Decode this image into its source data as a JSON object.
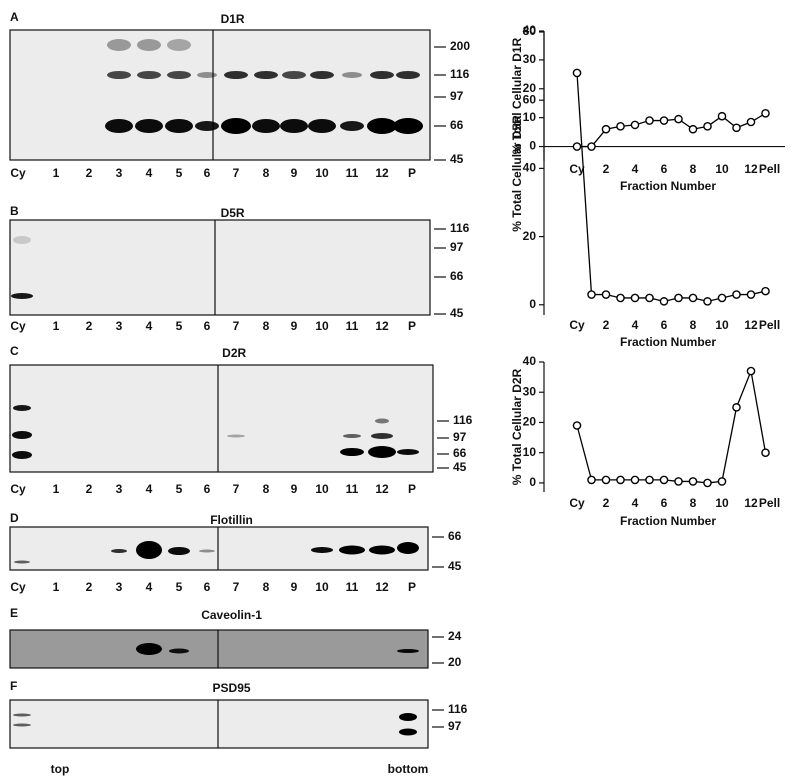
{
  "panels": [
    {
      "letter": "A",
      "title": "D1R",
      "lanes": [
        "Cy",
        "1",
        "2",
        "3",
        "4",
        "5",
        "6",
        "7",
        "8",
        "9",
        "10",
        "11",
        "12",
        "P"
      ],
      "markers": [
        "200",
        "116",
        "97",
        "66",
        "45"
      ]
    },
    {
      "letter": "B",
      "title": "D5R",
      "lanes": [
        "Cy",
        "1",
        "2",
        "3",
        "4",
        "5",
        "6",
        "7",
        "8",
        "9",
        "10",
        "11",
        "12",
        "P"
      ],
      "markers": [
        "116",
        "97",
        "66",
        "45"
      ]
    },
    {
      "letter": "C",
      "title": "D2R",
      "lanes": [
        "Cy",
        "1",
        "2",
        "3",
        "4",
        "5",
        "6",
        "7",
        "8",
        "9",
        "10",
        "11",
        "12",
        "P"
      ],
      "markers": [
        "116",
        "97",
        "66",
        "45"
      ]
    },
    {
      "letter": "D",
      "title": "Flotillin",
      "lanes": [
        "Cy",
        "1",
        "2",
        "3",
        "4",
        "5",
        "6",
        "7",
        "8",
        "9",
        "10",
        "11",
        "12",
        "P"
      ],
      "markers": [
        "66",
        "45"
      ]
    },
    {
      "letter": "E",
      "title": "Caveolin-1",
      "markers": [
        "24",
        "20"
      ]
    },
    {
      "letter": "F",
      "title": "PSD95",
      "markers": [
        "116",
        "97"
      ],
      "ends": [
        "top",
        "bottom"
      ]
    }
  ],
  "chart_data": [
    {
      "type": "line",
      "y_label": "% Total Cellular D1R",
      "x_label": "Fraction Number",
      "categories": [
        "Cy",
        null,
        "2",
        null,
        "4",
        null,
        "6",
        null,
        "8",
        null,
        "10",
        null,
        "12",
        "Pell"
      ],
      "values": [
        0,
        0,
        6,
        7,
        7.5,
        9,
        9,
        9.5,
        6,
        7,
        10.5,
        6.5,
        8.5,
        11.5
      ],
      "ylim": [
        -5,
        40
      ],
      "yticks": [
        0,
        10,
        20,
        30,
        40
      ],
      "zero_line": true,
      "color": "#000000"
    },
    {
      "type": "line",
      "y_label": "% Total Cellular D5R",
      "x_label": "Fraction Number",
      "categories": [
        "Cy",
        null,
        "2",
        null,
        "4",
        null,
        "6",
        null,
        "8",
        null,
        "10",
        null,
        "12",
        "Pell"
      ],
      "values": [
        68,
        3,
        3,
        2,
        2,
        2,
        1,
        2,
        2,
        1,
        2,
        3,
        3,
        4
      ],
      "ylim": [
        -3,
        80
      ],
      "yticks": [
        0,
        20,
        40,
        60,
        80
      ],
      "zero_line": false,
      "color": "#000000"
    },
    {
      "type": "line",
      "y_label": "% Total Cellular D2R",
      "x_label": "Fraction Number",
      "categories": [
        "Cy",
        null,
        "2",
        null,
        "4",
        null,
        "6",
        null,
        "8",
        null,
        "10",
        null,
        "12",
        "Pell"
      ],
      "values": [
        19,
        1,
        1,
        1,
        1,
        1,
        1,
        0.5,
        0.5,
        0,
        0.5,
        25,
        37,
        10
      ],
      "ylim": [
        -3,
        40
      ],
      "yticks": [
        0,
        10,
        20,
        30,
        40
      ],
      "zero_line": false,
      "color": "#000000"
    }
  ]
}
